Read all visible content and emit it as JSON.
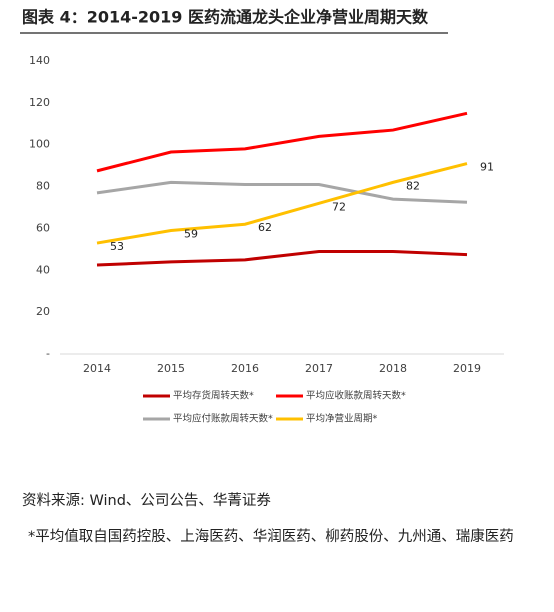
{
  "chart_data": {
    "type": "line",
    "title": "图表 4：2014-2019 医药流通龙头企业净营业周期天数",
    "categories": [
      "2014",
      "2015",
      "2016",
      "2017",
      "2018",
      "2019"
    ],
    "series": [
      {
        "name": "平均存货周转天数*",
        "color": "#c00000",
        "values": [
          42.5,
          44,
          45,
          49,
          49,
          47.5
        ]
      },
      {
        "name": "平均应收账款周转天数*",
        "color": "#ff0000",
        "values": [
          87.5,
          96.5,
          98,
          104,
          107,
          115
        ]
      },
      {
        "name": "平均应付账款周转天数*",
        "color": "#a6a6a6",
        "values": [
          77,
          82,
          81,
          81,
          74,
          72.5
        ]
      },
      {
        "name": "平均净营业周期*",
        "color": "#ffc000",
        "values": [
          53,
          59,
          62,
          72,
          82,
          91
        ],
        "data_labels": true
      }
    ],
    "ylim": [
      0,
      140
    ],
    "yticks": [
      {
        "value": 0,
        "label": "-"
      },
      20,
      40,
      60,
      80,
      100,
      120,
      140
    ],
    "grid": false,
    "source": "资料来源: Wind、公司公告、华菁证券",
    "note": "*平均值取自国药控股、上海医药、华润医药、柳药股份、九州通、瑞康医药"
  }
}
